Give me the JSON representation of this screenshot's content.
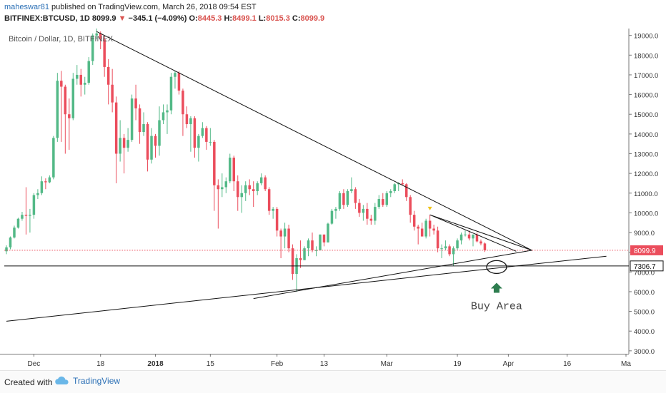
{
  "header": {
    "author": "maheswar81",
    "published": "published on TradingView.com, March 26, 2018 09:54 EST",
    "symbol": "BITFINEX:BTCUSD, 1D",
    "last": "8099.9",
    "change": "−345.1 (−4.09%)",
    "open_label": "O:",
    "open": "8445.3",
    "high_label": "H:",
    "high": "8499.1",
    "low_label": "L:",
    "low": "8015.3",
    "close_label": "C:",
    "close": "8099.9"
  },
  "footer": {
    "created_with": "Created with",
    "brand": "TradingView"
  },
  "colors": {
    "up": "#53b987",
    "down": "#eb4d5c",
    "price_line": "#eb4d5c",
    "annotation": "#2e7d4f"
  },
  "chart_data": {
    "type": "candlestick",
    "title": "Bitcoin / Dollar, 1D, BITFINEX",
    "y_axis": {
      "position": "right",
      "range": [
        2850,
        19350
      ],
      "ticks": [
        3000,
        4000,
        5000,
        6000,
        7000,
        8000,
        9000,
        10000,
        11000,
        12000,
        13000,
        14000,
        15000,
        16000,
        17000,
        18000,
        19000
      ],
      "tick_labels": [
        "3000.0",
        "4000.0",
        "5000.0",
        "6000.0",
        "7000.0",
        "8000.0",
        "9000.0",
        "10000.0",
        "11000.0",
        "12000.0",
        "13000.0",
        "14000.0",
        "15000.0",
        "16000.0",
        "17000.0",
        "18000.0",
        "19000.0"
      ]
    },
    "x_axis": {
      "start_date": "2017-11-24",
      "end_date": "2018-05-01",
      "tick_dates": [
        "2017-12-01",
        "2017-12-18",
        "2018-01-01",
        "2018-01-15",
        "2018-02-01",
        "2018-02-13",
        "2018-03-01",
        "2018-03-19",
        "2018-04-01",
        "2018-04-16",
        "2018-05-01"
      ],
      "tick_labels": [
        "Dec",
        "18",
        "2018",
        "15",
        "Feb",
        "13",
        "Mar",
        "19",
        "Apr",
        "16",
        "Ma"
      ]
    },
    "price_labels": [
      {
        "value": 8099.9,
        "label": "8099.9",
        "style": "last-price"
      },
      {
        "value": 7306.7,
        "label": "7306.7",
        "style": "horizontal-line"
      }
    ],
    "candles": [
      {
        "d": "2017-11-24",
        "o": 8050,
        "h": 8350,
        "l": 7900,
        "c": 8250
      },
      {
        "d": "2017-11-25",
        "o": 8250,
        "h": 8800,
        "l": 8150,
        "c": 8750
      },
      {
        "d": "2017-11-26",
        "o": 8750,
        "h": 9350,
        "l": 8700,
        "c": 9250
      },
      {
        "d": "2017-11-27",
        "o": 9250,
        "h": 9750,
        "l": 9200,
        "c": 9700
      },
      {
        "d": "2017-11-28",
        "o": 9700,
        "h": 10050,
        "l": 9600,
        "c": 9900
      },
      {
        "d": "2017-11-29",
        "o": 9900,
        "h": 11300,
        "l": 8900,
        "c": 9850
      },
      {
        "d": "2017-11-30",
        "o": 9850,
        "h": 10200,
        "l": 9000,
        "c": 9900
      },
      {
        "d": "2017-12-01",
        "o": 9900,
        "h": 11000,
        "l": 9700,
        "c": 10900
      },
      {
        "d": "2017-12-02",
        "o": 10900,
        "h": 11200,
        "l": 10700,
        "c": 11000
      },
      {
        "d": "2017-12-03",
        "o": 11000,
        "h": 11850,
        "l": 10900,
        "c": 11600
      },
      {
        "d": "2017-12-04",
        "o": 11600,
        "h": 11750,
        "l": 11200,
        "c": 11550
      },
      {
        "d": "2017-12-05",
        "o": 11550,
        "h": 11900,
        "l": 11500,
        "c": 11800
      },
      {
        "d": "2017-12-06",
        "o": 11800,
        "h": 13900,
        "l": 11700,
        "c": 13800
      },
      {
        "d": "2017-12-07",
        "o": 13800,
        "h": 17100,
        "l": 13600,
        "c": 16700
      },
      {
        "d": "2017-12-08",
        "o": 16700,
        "h": 17200,
        "l": 13600,
        "c": 16400
      },
      {
        "d": "2017-12-09",
        "o": 16400,
        "h": 16500,
        "l": 13000,
        "c": 15000
      },
      {
        "d": "2017-12-10",
        "o": 15000,
        "h": 15800,
        "l": 13200,
        "c": 14800
      },
      {
        "d": "2017-12-11",
        "o": 14800,
        "h": 17100,
        "l": 14700,
        "c": 16800
      },
      {
        "d": "2017-12-12",
        "o": 16800,
        "h": 17500,
        "l": 16500,
        "c": 17000
      },
      {
        "d": "2017-12-13",
        "o": 17000,
        "h": 17300,
        "l": 15900,
        "c": 16500
      },
      {
        "d": "2017-12-14",
        "o": 16500,
        "h": 16900,
        "l": 16000,
        "c": 16600
      },
      {
        "d": "2017-12-15",
        "o": 16600,
        "h": 17900,
        "l": 16500,
        "c": 17700
      },
      {
        "d": "2017-12-16",
        "o": 17700,
        "h": 19100,
        "l": 17500,
        "c": 19000
      },
      {
        "d": "2017-12-17",
        "o": 19000,
        "h": 19400,
        "l": 18800,
        "c": 19100
      },
      {
        "d": "2017-12-18",
        "o": 19100,
        "h": 19200,
        "l": 18300,
        "c": 18800
      },
      {
        "d": "2017-12-19",
        "o": 18800,
        "h": 19000,
        "l": 16900,
        "c": 17400
      },
      {
        "d": "2017-12-20",
        "o": 17400,
        "h": 17800,
        "l": 15500,
        "c": 16500
      },
      {
        "d": "2017-12-21",
        "o": 16500,
        "h": 17300,
        "l": 15100,
        "c": 15600
      },
      {
        "d": "2017-12-22",
        "o": 15600,
        "h": 15900,
        "l": 11500,
        "c": 13000
      },
      {
        "d": "2017-12-23",
        "o": 13000,
        "h": 14700,
        "l": 12600,
        "c": 13800
      },
      {
        "d": "2017-12-24",
        "o": 13800,
        "h": 14000,
        "l": 12000,
        "c": 13300
      },
      {
        "d": "2017-12-25",
        "o": 13300,
        "h": 14300,
        "l": 13100,
        "c": 13700
      },
      {
        "d": "2017-12-26",
        "o": 13700,
        "h": 16000,
        "l": 13600,
        "c": 15800
      },
      {
        "d": "2017-12-27",
        "o": 15800,
        "h": 16500,
        "l": 14700,
        "c": 15300
      },
      {
        "d": "2017-12-28",
        "o": 15300,
        "h": 15500,
        "l": 13500,
        "c": 14100
      },
      {
        "d": "2017-12-29",
        "o": 14100,
        "h": 15100,
        "l": 13900,
        "c": 14500
      },
      {
        "d": "2017-12-30",
        "o": 14500,
        "h": 14600,
        "l": 12100,
        "c": 12700
      },
      {
        "d": "2017-12-31",
        "o": 12700,
        "h": 14300,
        "l": 12500,
        "c": 13900
      },
      {
        "d": "2018-01-01",
        "o": 13900,
        "h": 14000,
        "l": 12800,
        "c": 13400
      },
      {
        "d": "2018-01-02",
        "o": 13400,
        "h": 15400,
        "l": 12900,
        "c": 14700
      },
      {
        "d": "2018-01-03",
        "o": 14700,
        "h": 15500,
        "l": 14500,
        "c": 15100
      },
      {
        "d": "2018-01-04",
        "o": 15100,
        "h": 15500,
        "l": 14000,
        "c": 15200
      },
      {
        "d": "2018-01-05",
        "o": 15200,
        "h": 17100,
        "l": 15000,
        "c": 16900
      },
      {
        "d": "2018-01-06",
        "o": 16900,
        "h": 17200,
        "l": 16300,
        "c": 17100
      },
      {
        "d": "2018-01-07",
        "o": 17100,
        "h": 17200,
        "l": 16000,
        "c": 16200
      },
      {
        "d": "2018-01-08",
        "o": 16200,
        "h": 16300,
        "l": 13900,
        "c": 15000
      },
      {
        "d": "2018-01-09",
        "o": 15000,
        "h": 15400,
        "l": 14300,
        "c": 14500
      },
      {
        "d": "2018-01-10",
        "o": 14500,
        "h": 14900,
        "l": 13100,
        "c": 14800
      },
      {
        "d": "2018-01-11",
        "o": 14800,
        "h": 14900,
        "l": 12800,
        "c": 13300
      },
      {
        "d": "2018-01-12",
        "o": 13300,
        "h": 14000,
        "l": 12600,
        "c": 13900
      },
      {
        "d": "2018-01-13",
        "o": 13900,
        "h": 14600,
        "l": 13800,
        "c": 14300
      },
      {
        "d": "2018-01-14",
        "o": 14300,
        "h": 14400,
        "l": 13200,
        "c": 13600
      },
      {
        "d": "2018-01-15",
        "o": 13600,
        "h": 14300,
        "l": 13400,
        "c": 13600
      },
      {
        "d": "2018-01-16",
        "o": 13600,
        "h": 13700,
        "l": 10100,
        "c": 11400
      },
      {
        "d": "2018-01-17",
        "o": 11400,
        "h": 11700,
        "l": 9200,
        "c": 11200
      },
      {
        "d": "2018-01-18",
        "o": 11200,
        "h": 12000,
        "l": 10800,
        "c": 11300
      },
      {
        "d": "2018-01-19",
        "o": 11300,
        "h": 11800,
        "l": 11000,
        "c": 11600
      },
      {
        "d": "2018-01-20",
        "o": 11600,
        "h": 13000,
        "l": 11500,
        "c": 12800
      },
      {
        "d": "2018-01-21",
        "o": 12800,
        "h": 12900,
        "l": 11100,
        "c": 11600
      },
      {
        "d": "2018-01-22",
        "o": 11600,
        "h": 11900,
        "l": 10100,
        "c": 10800
      },
      {
        "d": "2018-01-23",
        "o": 10800,
        "h": 11400,
        "l": 10000,
        "c": 11000
      },
      {
        "d": "2018-01-24",
        "o": 11000,
        "h": 11600,
        "l": 10600,
        "c": 11400
      },
      {
        "d": "2018-01-25",
        "o": 11400,
        "h": 11700,
        "l": 10900,
        "c": 11200
      },
      {
        "d": "2018-01-26",
        "o": 11200,
        "h": 11600,
        "l": 10300,
        "c": 11100
      },
      {
        "d": "2018-01-27",
        "o": 11100,
        "h": 11600,
        "l": 10900,
        "c": 11500
      },
      {
        "d": "2018-01-28",
        "o": 11500,
        "h": 12000,
        "l": 11400,
        "c": 11800
      },
      {
        "d": "2018-01-29",
        "o": 11800,
        "h": 11900,
        "l": 11100,
        "c": 11200
      },
      {
        "d": "2018-01-30",
        "o": 11200,
        "h": 11300,
        "l": 9900,
        "c": 10100
      },
      {
        "d": "2018-01-31",
        "o": 10100,
        "h": 10300,
        "l": 9700,
        "c": 10200
      },
      {
        "d": "2018-02-01",
        "o": 10200,
        "h": 10300,
        "l": 8800,
        "c": 9100
      },
      {
        "d": "2018-02-02",
        "o": 9100,
        "h": 9200,
        "l": 7700,
        "c": 8800
      },
      {
        "d": "2018-02-03",
        "o": 8800,
        "h": 9500,
        "l": 8200,
        "c": 9200
      },
      {
        "d": "2018-02-04",
        "o": 9200,
        "h": 9400,
        "l": 8000,
        "c": 8200
      },
      {
        "d": "2018-02-05",
        "o": 8200,
        "h": 8400,
        "l": 6600,
        "c": 6900
      },
      {
        "d": "2018-02-06",
        "o": 6900,
        "h": 7900,
        "l": 6000,
        "c": 7700
      },
      {
        "d": "2018-02-07",
        "o": 7700,
        "h": 8600,
        "l": 7200,
        "c": 7600
      },
      {
        "d": "2018-02-08",
        "o": 7600,
        "h": 8300,
        "l": 7600,
        "c": 8200
      },
      {
        "d": "2018-02-09",
        "o": 8200,
        "h": 8700,
        "l": 7800,
        "c": 8600
      },
      {
        "d": "2018-02-10",
        "o": 8600,
        "h": 9000,
        "l": 8000,
        "c": 8100
      },
      {
        "d": "2018-02-11",
        "o": 8100,
        "h": 8300,
        "l": 7800,
        "c": 8100
      },
      {
        "d": "2018-02-12",
        "o": 8100,
        "h": 8900,
        "l": 8100,
        "c": 8900
      },
      {
        "d": "2018-02-13",
        "o": 8900,
        "h": 8900,
        "l": 8300,
        "c": 8500
      },
      {
        "d": "2018-02-14",
        "o": 8500,
        "h": 9500,
        "l": 8500,
        "c": 9450
      },
      {
        "d": "2018-02-15",
        "o": 9450,
        "h": 10200,
        "l": 9400,
        "c": 10100
      },
      {
        "d": "2018-02-16",
        "o": 10100,
        "h": 10300,
        "l": 9700,
        "c": 10200
      },
      {
        "d": "2018-02-17",
        "o": 10200,
        "h": 11100,
        "l": 10100,
        "c": 11000
      },
      {
        "d": "2018-02-18",
        "o": 11000,
        "h": 11200,
        "l": 10200,
        "c": 10400
      },
      {
        "d": "2018-02-19",
        "o": 10400,
        "h": 11200,
        "l": 10300,
        "c": 11100
      },
      {
        "d": "2018-02-20",
        "o": 11100,
        "h": 11800,
        "l": 11000,
        "c": 11200
      },
      {
        "d": "2018-02-21",
        "o": 11200,
        "h": 11300,
        "l": 10200,
        "c": 10500
      },
      {
        "d": "2018-02-22",
        "o": 10500,
        "h": 10700,
        "l": 9800,
        "c": 10000
      },
      {
        "d": "2018-02-23",
        "o": 10000,
        "h": 10400,
        "l": 9600,
        "c": 10200
      },
      {
        "d": "2018-02-24",
        "o": 10200,
        "h": 10500,
        "l": 9400,
        "c": 9700
      },
      {
        "d": "2018-02-25",
        "o": 9700,
        "h": 9900,
        "l": 9400,
        "c": 9600
      },
      {
        "d": "2018-02-26",
        "o": 9600,
        "h": 10500,
        "l": 9400,
        "c": 10300
      },
      {
        "d": "2018-02-27",
        "o": 10300,
        "h": 10900,
        "l": 10200,
        "c": 10700
      },
      {
        "d": "2018-02-28",
        "o": 10700,
        "h": 11000,
        "l": 10300,
        "c": 10400
      },
      {
        "d": "2018-03-01",
        "o": 10400,
        "h": 11100,
        "l": 10300,
        "c": 11000
      },
      {
        "d": "2018-03-02",
        "o": 11000,
        "h": 11200,
        "l": 10800,
        "c": 11100
      },
      {
        "d": "2018-03-03",
        "o": 11100,
        "h": 11500,
        "l": 11000,
        "c": 11450
      },
      {
        "d": "2018-03-04",
        "o": 11450,
        "h": 11550,
        "l": 11100,
        "c": 11500
      },
      {
        "d": "2018-03-05",
        "o": 11500,
        "h": 11700,
        "l": 11400,
        "c": 11450
      },
      {
        "d": "2018-03-06",
        "o": 11450,
        "h": 11500,
        "l": 10600,
        "c": 10800
      },
      {
        "d": "2018-03-07",
        "o": 10800,
        "h": 10900,
        "l": 9500,
        "c": 9900
      },
      {
        "d": "2018-03-08",
        "o": 9900,
        "h": 10100,
        "l": 9100,
        "c": 9300
      },
      {
        "d": "2018-03-09",
        "o": 9300,
        "h": 9400,
        "l": 8400,
        "c": 9200
      },
      {
        "d": "2018-03-10",
        "o": 9200,
        "h": 9500,
        "l": 8800,
        "c": 8800
      },
      {
        "d": "2018-03-11",
        "o": 8800,
        "h": 9700,
        "l": 8700,
        "c": 9600
      },
      {
        "d": "2018-03-12",
        "o": 9600,
        "h": 9900,
        "l": 8800,
        "c": 9200
      },
      {
        "d": "2018-03-13",
        "o": 9200,
        "h": 9400,
        "l": 8900,
        "c": 9100
      },
      {
        "d": "2018-03-14",
        "o": 9100,
        "h": 9300,
        "l": 8000,
        "c": 8200
      },
      {
        "d": "2018-03-15",
        "o": 8200,
        "h": 8400,
        "l": 7700,
        "c": 8200
      },
      {
        "d": "2018-03-16",
        "o": 8200,
        "h": 8600,
        "l": 8100,
        "c": 8300
      },
      {
        "d": "2018-03-17",
        "o": 8300,
        "h": 8400,
        "l": 7800,
        "c": 7900
      },
      {
        "d": "2018-03-18",
        "o": 7900,
        "h": 8300,
        "l": 7300,
        "c": 8200
      },
      {
        "d": "2018-03-19",
        "o": 8200,
        "h": 8700,
        "l": 8100,
        "c": 8600
      },
      {
        "d": "2018-03-20",
        "o": 8600,
        "h": 9000,
        "l": 8400,
        "c": 8900
      },
      {
        "d": "2018-03-21",
        "o": 8900,
        "h": 9100,
        "l": 8800,
        "c": 8900
      },
      {
        "d": "2018-03-22",
        "o": 8900,
        "h": 9100,
        "l": 8600,
        "c": 8700
      },
      {
        "d": "2018-03-23",
        "o": 8700,
        "h": 8900,
        "l": 8300,
        "c": 8900
      },
      {
        "d": "2018-03-24",
        "o": 8900,
        "h": 9000,
        "l": 8500,
        "c": 8550
      },
      {
        "d": "2018-03-25",
        "o": 8550,
        "h": 8650,
        "l": 8350,
        "c": 8445
      },
      {
        "d": "2018-03-26",
        "o": 8445.3,
        "h": 8499.1,
        "l": 8015.3,
        "c": 8099.9
      }
    ],
    "trend_lines": [
      {
        "from": {
          "d": "2017-12-17",
          "v": 19200
        },
        "to": {
          "d": "2018-04-07",
          "v": 8100
        }
      },
      {
        "from": {
          "d": "2018-03-12",
          "v": 9900
        },
        "to": {
          "d": "2018-04-07",
          "v": 8100
        }
      },
      {
        "from": {
          "d": "2018-03-12",
          "v": 9900
        },
        "to": {
          "d": "2018-04-03",
          "v": 8050
        }
      },
      {
        "from": {
          "d": "2018-01-26",
          "v": 5650
        },
        "to": {
          "d": "2018-04-07",
          "v": 8100
        }
      },
      {
        "from": {
          "d": "2017-11-24",
          "v": 4500
        },
        "to": {
          "d": "2018-04-26",
          "v": 7800
        }
      }
    ],
    "horizontal_line": 7306.7,
    "marker": {
      "d": "2018-03-12",
      "v": 10200,
      "shape": "triangle-down",
      "color": "#f0c419"
    },
    "annotation": {
      "text": "Buy Area",
      "ellipse_center": {
        "d": "2018-03-29",
        "v": 7250
      },
      "arrow_tip": {
        "d": "2018-03-29",
        "v": 6450
      }
    }
  }
}
